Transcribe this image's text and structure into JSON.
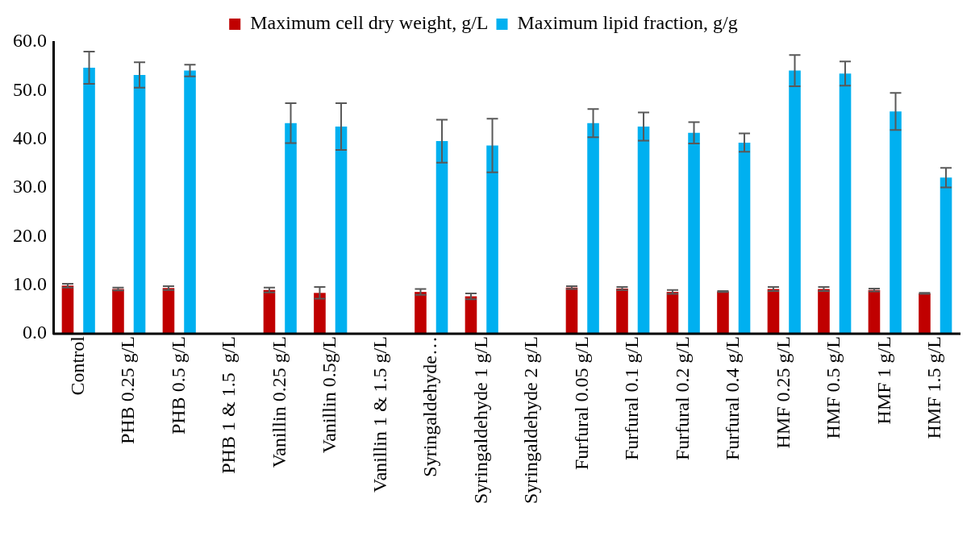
{
  "chart_data": {
    "type": "bar",
    "categories": [
      "Control",
      "PHB 0.25 g/L",
      "PHB 0.5 g/L",
      "PHB 1 & 1.5  g/L",
      "Vanillin 0.25 g/L",
      "Vanillin 0.5g/L",
      "Vanillin 1 & 1.5 g/L",
      "Syringaldehyde…",
      "Syringaldehyde 1 g/L",
      "Syringaldehyde 2 g/L",
      "Furfural 0.05 g/L",
      "Furfural 0.1 g/L",
      "Furfural 0.2 g/L",
      "Furfural 0.4 g/L",
      "HMF 0.25 g/L",
      "HMF 0.5 g/L",
      "HMF 1 g/L",
      "HMF 1.5 g/L"
    ],
    "series": [
      {
        "name": "Maximum cell dry weight, g/L",
        "color": "#c00000",
        "values": [
          9.9,
          9.2,
          9.4,
          0,
          9.0,
          8.4,
          0,
          8.6,
          7.7,
          0,
          9.5,
          9.3,
          8.6,
          8.7,
          9.2,
          9.2,
          9.0,
          8.3
        ],
        "errors": [
          0.4,
          0.3,
          0.4,
          null,
          0.5,
          1.2,
          null,
          0.6,
          0.6,
          null,
          0.3,
          0.3,
          0.4,
          0.1,
          0.4,
          0.4,
          0.3,
          0.1
        ]
      },
      {
        "name": "Maximum lipid fraction, g/g",
        "color": "#00b0f0",
        "values": [
          54.7,
          53.2,
          54.1,
          0,
          43.3,
          42.6,
          0,
          39.6,
          38.7,
          0,
          43.3,
          42.6,
          41.3,
          39.3,
          54.1,
          53.5,
          45.7,
          32.1
        ],
        "errors": [
          3.3,
          2.6,
          1.2,
          null,
          4.1,
          4.8,
          null,
          4.4,
          5.5,
          null,
          2.9,
          2.9,
          2.2,
          1.9,
          3.2,
          2.5,
          3.8,
          2.0
        ]
      }
    ],
    "ylim": [
      0,
      60
    ],
    "yticks": [
      {
        "value": 0,
        "label": "0.0"
      },
      {
        "value": 10,
        "label": "10.0"
      },
      {
        "value": 20,
        "label": "20.0"
      },
      {
        "value": 30,
        "label": "30.0"
      },
      {
        "value": 40,
        "label": "40.0"
      },
      {
        "value": 50,
        "label": "50.0"
      },
      {
        "value": 60,
        "label": "60.0"
      }
    ],
    "grid": false,
    "legend": "top"
  }
}
